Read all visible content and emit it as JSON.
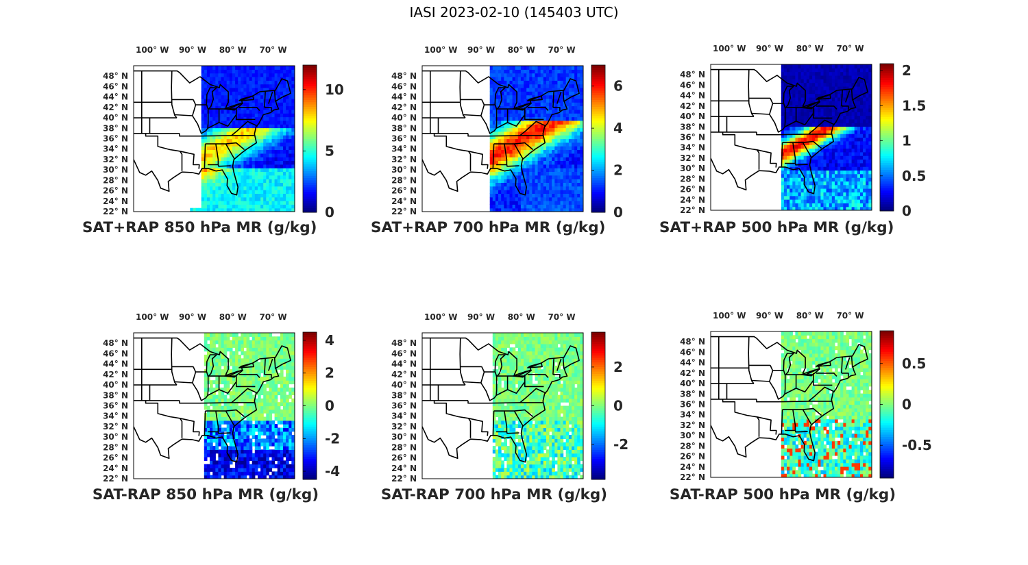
{
  "figure": {
    "title": "IASI 2023-02-10 (145403 UTC)"
  },
  "colormap": "jet",
  "lon_ticks": [
    "100° W",
    "90° W",
    "80° W",
    "70° W"
  ],
  "lat_ticks": [
    "48° N",
    "46° N",
    "44° N",
    "42° N",
    "40° N",
    "38° N",
    "36° N",
    "34° N",
    "32° N",
    "30° N",
    "28° N",
    "26° N",
    "24° N",
    "22° N"
  ],
  "chart_data": [
    {
      "type": "heatmap",
      "title": "SAT+RAP 850 hPa MR (g/kg)",
      "colorbar": {
        "range": [
          0,
          12
        ],
        "ticks": [
          0,
          5,
          10
        ]
      },
      "field_summary": "values 0-3 north of ~35°N; 6-12 band along southeast coast and Gulf"
    },
    {
      "type": "heatmap",
      "title": "SAT+RAP 700 hPa MR (g/kg)",
      "colorbar": {
        "range": [
          0,
          7
        ],
        "ticks": [
          0,
          2,
          4,
          6
        ]
      },
      "field_summary": "values 0-2 north; 4-7 band from Gulf coast to mid-Atlantic"
    },
    {
      "type": "heatmap",
      "title": "SAT+RAP 500 hPa MR (g/kg)",
      "colorbar": {
        "range": [
          0,
          2.1
        ],
        "ticks": [
          0,
          0.5,
          1,
          1.5,
          2
        ]
      },
      "field_summary": "values mostly below 0.5; 1.5-2.1 band along southeast coast"
    },
    {
      "type": "heatmap",
      "title": "SAT-RAP 850 hPa MR (g/kg)",
      "colorbar": {
        "range": [
          -4.5,
          4.5
        ],
        "ticks": [
          -4,
          -2,
          0,
          2,
          4
        ]
      },
      "field_summary": "near 0 over land; -2 to -4 off southeast coast"
    },
    {
      "type": "heatmap",
      "title": "SAT-RAP 700 hPa MR (g/kg)",
      "colorbar": {
        "range": [
          -3.8,
          3.8
        ],
        "ticks": [
          -2,
          0,
          2
        ]
      },
      "field_summary": "near 0 over most of domain; scattered -2 to -3 along Gulf coast"
    },
    {
      "type": "heatmap",
      "title": "SAT-RAP 500 hPa MR (g/kg)",
      "colorbar": {
        "range": [
          -0.9,
          0.9
        ],
        "ticks": [
          -0.5,
          0,
          0.5
        ]
      },
      "field_summary": "near 0 over land; -0.5 to -0.9 near coast; scattered +0.5 offshore"
    }
  ]
}
